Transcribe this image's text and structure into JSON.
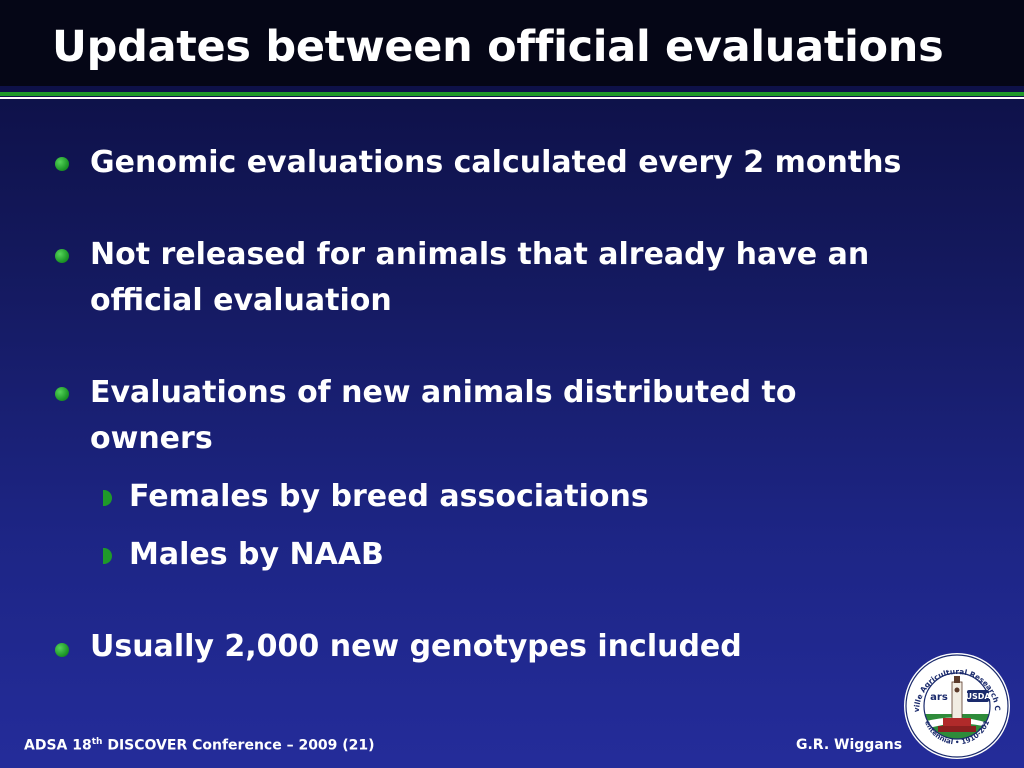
{
  "slide": {
    "title": "Updates between official evaluations",
    "bullets": [
      "Genomic evaluations calculated every 2 months",
      "Not released for animals that already have an official evaluation",
      "Evaluations of new animals distributed to owners",
      "Usually 2,000 new genotypes included"
    ],
    "sub_bullets": [
      "Females by breed associations",
      "Males by NAAB"
    ]
  },
  "footer": {
    "conference_prefix": "ADSA 18",
    "conference_superscript": "th",
    "conference_suffix": " DISCOVER Conference – 2009 (21)",
    "author": "G.R. Wiggans"
  },
  "logo": {
    "ring_text_top": "Beltsville Agricultural Research Center",
    "ring_text_bottom": "Centennial • 1910-2010",
    "badge_text": "USDA",
    "mark_text": "ars"
  },
  "colors": {
    "accent_green": "#1f9a2a",
    "background_dark": "#0b0d3e",
    "background_light": "#242c9a"
  }
}
